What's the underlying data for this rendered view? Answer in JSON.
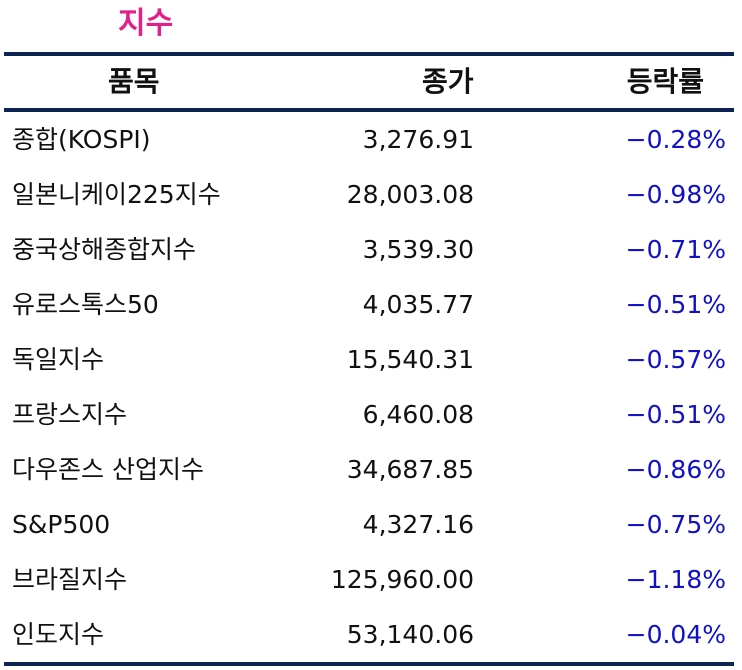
{
  "title": "지수",
  "colors": {
    "title": "#e0218a",
    "rule": "#0d2452",
    "change": "#1010c8"
  },
  "table": {
    "headers": {
      "name": "품목",
      "close": "종가",
      "change": "등락률"
    },
    "rows": [
      {
        "name": "종합(KOSPI)",
        "close": "3,276.91",
        "change": "−0.28%"
      },
      {
        "name": "일본니케이225지수",
        "close": "28,003.08",
        "change": "−0.98%"
      },
      {
        "name": "중국상해종합지수",
        "close": "3,539.30",
        "change": "−0.71%"
      },
      {
        "name": "유로스톡스50",
        "close": "4,035.77",
        "change": "−0.51%"
      },
      {
        "name": "독일지수",
        "close": "15,540.31",
        "change": "−0.57%"
      },
      {
        "name": "프랑스지수",
        "close": "6,460.08",
        "change": "−0.51%"
      },
      {
        "name": "다우존스 산업지수",
        "close": "34,687.85",
        "change": "−0.86%"
      },
      {
        "name": "S&P500",
        "close": "4,327.16",
        "change": "−0.75%"
      },
      {
        "name": "브라질지수",
        "close": "125,960.00",
        "change": "−1.18%"
      },
      {
        "name": "인도지수",
        "close": "53,140.06",
        "change": "−0.04%"
      }
    ]
  }
}
